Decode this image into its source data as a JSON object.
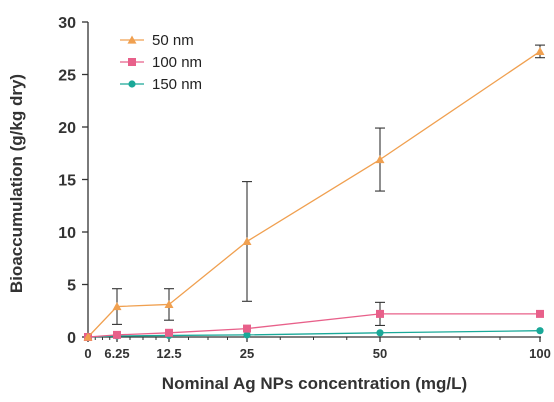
{
  "chart_data": {
    "type": "line",
    "xlabel": "Nominal Ag NPs concentration (mg/L)",
    "ylabel": "Bioaccumulation (g/kg dry)",
    "x": [
      0,
      6.25,
      12.5,
      25,
      50,
      100
    ],
    "x_tick_labels": [
      "0",
      "6.25",
      "12.5",
      "25",
      "50",
      "100"
    ],
    "ylim": [
      0,
      30
    ],
    "y_ticks": [
      0,
      5,
      10,
      15,
      20,
      25,
      30
    ],
    "legend_position": "top-left",
    "grid": false,
    "series": [
      {
        "name": "50 nm",
        "color": "#f0a050",
        "marker": "triangle",
        "values": [
          0,
          2.9,
          3.1,
          9.1,
          16.9,
          27.2
        ],
        "error": [
          0,
          1.7,
          1.5,
          5.7,
          3.0,
          0.6
        ]
      },
      {
        "name": "100 nm",
        "color": "#e8608a",
        "marker": "square",
        "values": [
          0,
          0.2,
          0.4,
          0.8,
          2.2,
          2.2
        ],
        "error": [
          0,
          0,
          0,
          0,
          1.1,
          0
        ]
      },
      {
        "name": "150 nm",
        "color": "#1aa898",
        "marker": "circle",
        "values": [
          0,
          0.1,
          0.15,
          0.2,
          0.4,
          0.6
        ],
        "error": [
          0,
          0,
          0,
          0,
          0,
          0
        ]
      }
    ]
  }
}
